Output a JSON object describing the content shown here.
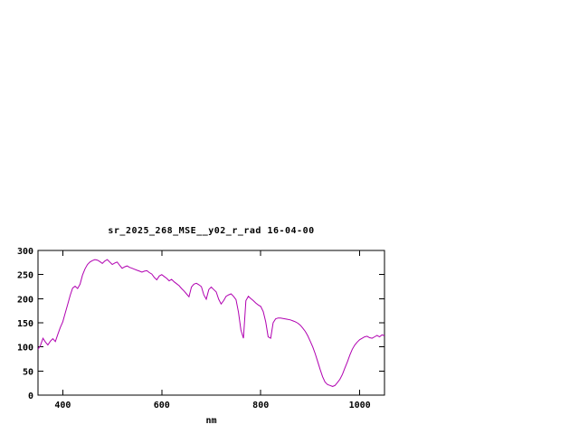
{
  "chart_data": {
    "type": "line",
    "title": "sr_2025_268_MSE__y02_r_rad 16-04-00",
    "xlabel": "nm",
    "ylabel": "",
    "xlim": [
      350,
      1050
    ],
    "ylim": [
      0,
      300
    ],
    "x_ticks": [
      400,
      600,
      800,
      1000
    ],
    "y_ticks": [
      0,
      50,
      100,
      150,
      200,
      250,
      300
    ],
    "grid": false,
    "legend_position": "none",
    "line_color": "#b000b0",
    "axis_color": "#000000",
    "background_color": "#ffffff",
    "series": [
      {
        "name": "sr_2025_268_MSE__y02_r_rad",
        "x": [
          350,
          355,
          360,
          365,
          370,
          375,
          380,
          385,
          390,
          395,
          400,
          405,
          410,
          415,
          420,
          425,
          430,
          435,
          440,
          445,
          450,
          455,
          460,
          465,
          470,
          475,
          480,
          485,
          490,
          495,
          500,
          505,
          510,
          515,
          520,
          525,
          530,
          535,
          540,
          545,
          550,
          555,
          560,
          565,
          570,
          575,
          580,
          585,
          590,
          595,
          600,
          605,
          610,
          615,
          620,
          625,
          630,
          635,
          640,
          645,
          650,
          655,
          660,
          665,
          670,
          675,
          680,
          685,
          690,
          695,
          700,
          705,
          710,
          715,
          720,
          725,
          730,
          735,
          740,
          745,
          750,
          755,
          760,
          765,
          770,
          775,
          780,
          785,
          790,
          795,
          800,
          805,
          810,
          815,
          820,
          825,
          830,
          835,
          840,
          845,
          850,
          855,
          860,
          865,
          870,
          875,
          880,
          885,
          890,
          895,
          900,
          905,
          910,
          915,
          920,
          925,
          930,
          935,
          940,
          945,
          950,
          955,
          960,
          965,
          970,
          975,
          980,
          985,
          990,
          995,
          1000,
          1005,
          1010,
          1015,
          1020,
          1025,
          1030,
          1035,
          1040,
          1045,
          1050
        ],
        "y": [
          95,
          103,
          118,
          110,
          104,
          112,
          117,
          111,
          126,
          140,
          152,
          170,
          188,
          207,
          222,
          226,
          221,
          230,
          249,
          262,
          271,
          276,
          279,
          281,
          280,
          277,
          273,
          278,
          281,
          276,
          271,
          274,
          276,
          269,
          263,
          266,
          268,
          265,
          263,
          261,
          259,
          257,
          255,
          257,
          258,
          254,
          251,
          244,
          239,
          247,
          250,
          246,
          242,
          237,
          240,
          235,
          231,
          227,
          221,
          216,
          210,
          204,
          224,
          230,
          232,
          229,
          225,
          208,
          199,
          219,
          224,
          219,
          214,
          199,
          189,
          196,
          205,
          208,
          210,
          205,
          198,
          172,
          135,
          118,
          196,
          205,
          200,
          196,
          191,
          187,
          184,
          173,
          152,
          121,
          118,
          150,
          158,
          160,
          160,
          159,
          158,
          157,
          156,
          154,
          152,
          149,
          145,
          139,
          132,
          123,
          112,
          100,
          86,
          70,
          53,
          38,
          27,
          22,
          20,
          18,
          20,
          26,
          33,
          43,
          56,
          69,
          83,
          95,
          104,
          110,
          115,
          118,
          121,
          122,
          119,
          118,
          121,
          124,
          121,
          125,
          123
        ]
      }
    ]
  }
}
